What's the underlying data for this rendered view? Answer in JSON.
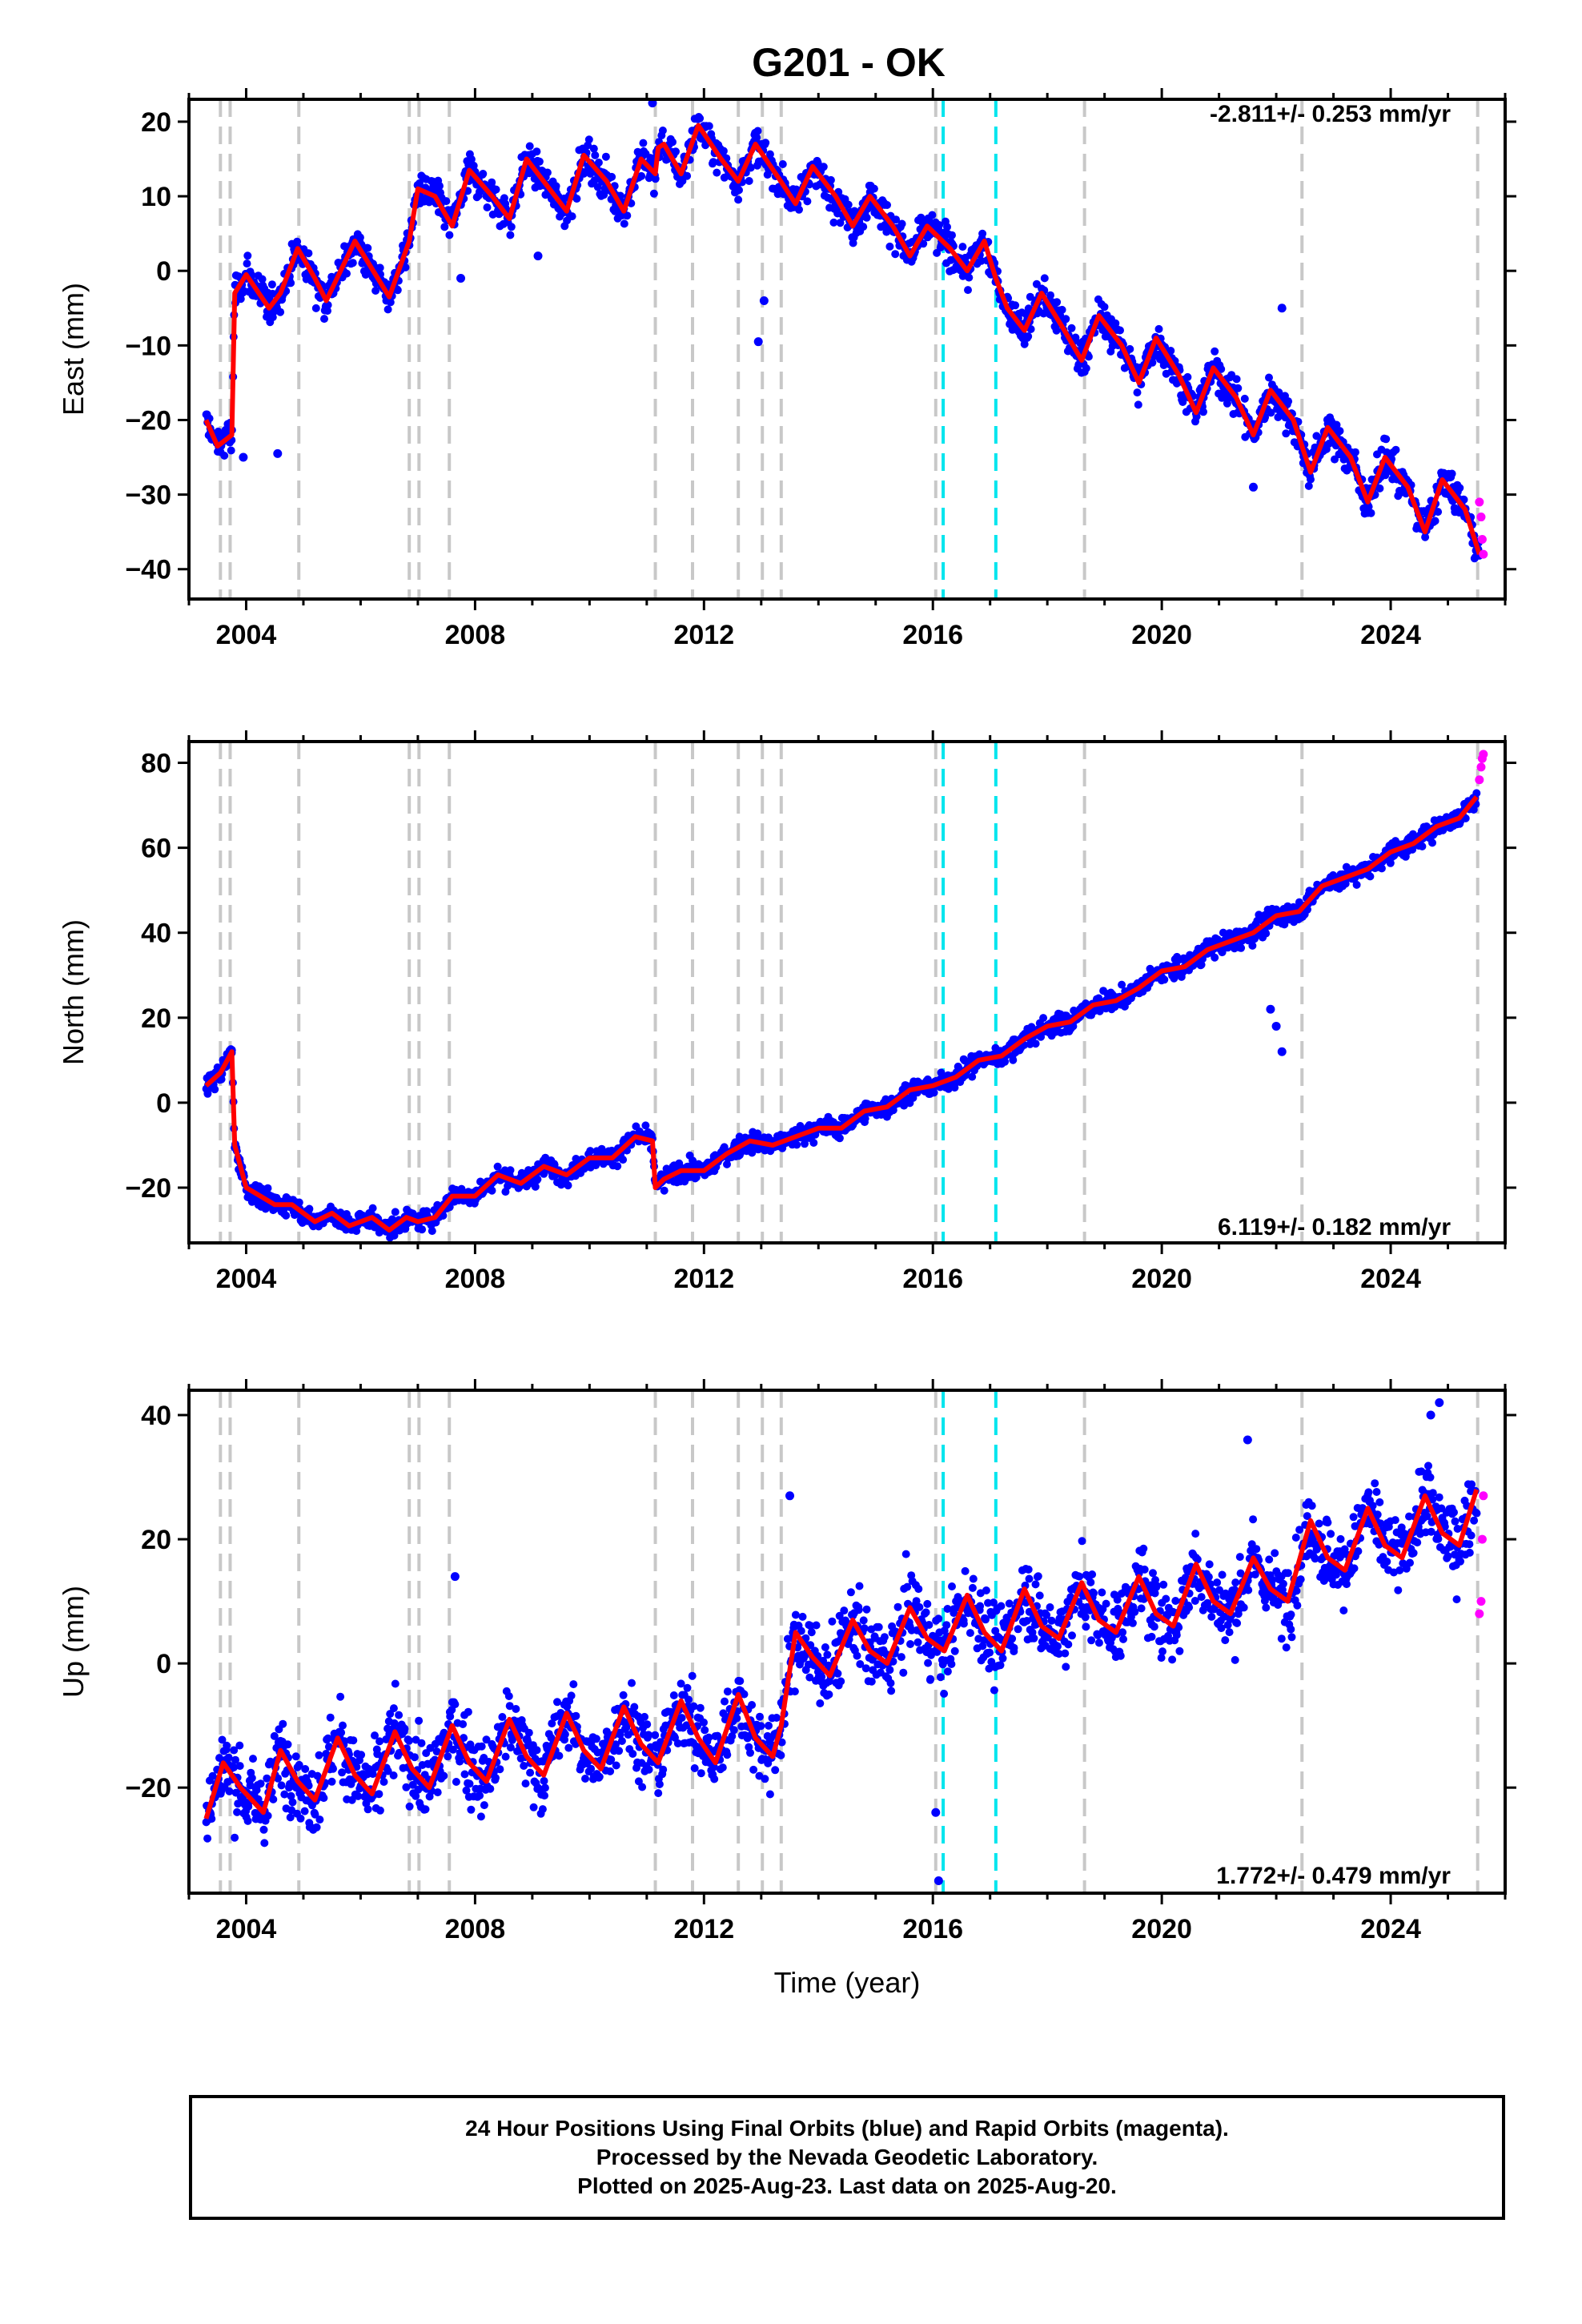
{
  "title": "G201 - OK",
  "colors": {
    "final_orbits": "#0000ff",
    "rapid_orbits": "#ff00ff",
    "model_fit": "#ff0000",
    "equipment_change": "#c8c8c8",
    "earthquake": "#00e5ee"
  },
  "x_axis": {
    "label": "Time (year)",
    "range": [
      2003.0,
      2026.0
    ],
    "ticks": [
      2004,
      2008,
      2012,
      2016,
      2020,
      2024
    ],
    "tick_labels": [
      "2004",
      "2008",
      "2012",
      "2016",
      "2020",
      "2024"
    ]
  },
  "event_lines": {
    "gray": [
      2003.55,
      2003.72,
      2004.92,
      2006.85,
      2007.02,
      2007.55,
      2011.15,
      2011.8,
      2012.6,
      2013.02,
      2013.35,
      2016.05,
      2018.65,
      2022.45,
      2025.52
    ],
    "cyan": [
      2016.18,
      2017.1
    ]
  },
  "chart_data": [
    {
      "type": "scatter",
      "panel": "east",
      "ylabel": "East (mm)",
      "ylim": [
        -44,
        23
      ],
      "yticks": [
        -40,
        -30,
        -20,
        -10,
        0,
        10,
        20
      ],
      "ytick_labels": [
        "−40",
        "−30",
        "−20",
        "−10",
        "0",
        "10",
        "20"
      ],
      "rate_text": "-2.811+/- 0.253 mm/yr",
      "rate_position": "top-right",
      "model_fit": {
        "x": [
          2003.3,
          2003.5,
          2003.75,
          2003.8,
          2004.0,
          2004.4,
          2004.6,
          2004.9,
          2005.2,
          2005.4,
          2005.9,
          2006.3,
          2006.5,
          2006.85,
          2007.0,
          2007.3,
          2007.6,
          2007.9,
          2008.3,
          2008.6,
          2008.9,
          2009.3,
          2009.6,
          2009.9,
          2010.3,
          2010.6,
          2010.9,
          2011.15,
          2011.2,
          2011.3,
          2011.6,
          2011.9,
          2012.3,
          2012.6,
          2012.9,
          2013.3,
          2013.6,
          2013.9,
          2014.3,
          2014.6,
          2014.9,
          2015.3,
          2015.6,
          2015.9,
          2016.3,
          2016.6,
          2016.9,
          2017.1,
          2017.3,
          2017.6,
          2017.9,
          2018.3,
          2018.6,
          2018.9,
          2019.3,
          2019.6,
          2019.9,
          2020.3,
          2020.6,
          2020.9,
          2021.3,
          2021.6,
          2021.9,
          2022.3,
          2022.6,
          2022.9,
          2023.3,
          2023.6,
          2023.9,
          2024.3,
          2024.6,
          2024.9,
          2025.3,
          2025.55
        ],
        "y": [
          -20,
          -23.5,
          -22,
          -3,
          -0.5,
          -5,
          -3,
          3,
          -1,
          -4,
          4,
          -1,
          -3.5,
          4,
          11,
          10,
          6,
          13.5,
          10,
          7,
          15,
          11,
          8,
          15.5,
          12,
          8,
          15,
          13,
          16.5,
          17,
          13,
          19.5,
          15,
          12,
          17,
          12.5,
          9,
          14,
          10,
          6,
          10,
          6,
          2,
          6,
          3,
          0,
          4,
          -1,
          -5,
          -8,
          -3,
          -8,
          -12,
          -6,
          -10,
          -15,
          -9,
          -14,
          -19,
          -13,
          -17,
          -22,
          -16,
          -20,
          -27,
          -21,
          -25,
          -31,
          -25,
          -29,
          -35,
          -28,
          -32,
          -38
        ]
      },
      "rapid_points": {
        "x": [
          2025.55,
          2025.58,
          2025.6,
          2025.62
        ],
        "y": [
          -31,
          -33,
          -36,
          -38
        ]
      },
      "outliers": {
        "x": [
          2003.95,
          2004.55,
          2007.75,
          2009.1,
          2011.1,
          2012.95,
          2013.05,
          2021.6,
          2022.1
        ],
        "y": [
          -25,
          -24.5,
          -1,
          2,
          22.5,
          -9.5,
          -4,
          -29,
          -5
        ]
      }
    },
    {
      "type": "scatter",
      "panel": "north",
      "ylabel": "North (mm)",
      "ylim": [
        -33,
        85
      ],
      "yticks": [
        -20,
        0,
        20,
        40,
        60,
        80
      ],
      "ytick_labels": [
        "−20",
        "0",
        "20",
        "40",
        "60",
        "80"
      ],
      "rate_text": "6.119+/- 0.182 mm/yr",
      "rate_position": "bottom-right",
      "model_fit": {
        "x": [
          2003.3,
          2003.55,
          2003.75,
          2003.8,
          2004.0,
          2004.5,
          2004.8,
          2005.2,
          2005.5,
          2005.8,
          2006.2,
          2006.5,
          2006.8,
          2007.0,
          2007.3,
          2007.6,
          2008.0,
          2008.4,
          2008.8,
          2009.2,
          2009.6,
          2010.0,
          2010.4,
          2010.8,
          2011.1,
          2011.15,
          2011.3,
          2011.6,
          2012.0,
          2012.4,
          2012.8,
          2013.2,
          2013.6,
          2014.0,
          2014.4,
          2014.8,
          2015.2,
          2015.6,
          2016.0,
          2016.4,
          2016.8,
          2017.2,
          2017.6,
          2018.0,
          2018.4,
          2018.8,
          2019.2,
          2019.6,
          2020.0,
          2020.4,
          2020.8,
          2021.2,
          2021.6,
          2022.0,
          2022.4,
          2022.8,
          2023.2,
          2023.6,
          2024.0,
          2024.4,
          2024.8,
          2025.2,
          2025.5
        ],
        "y": [
          4,
          7,
          12,
          -10,
          -20,
          -24,
          -24,
          -28,
          -26,
          -29,
          -27,
          -30,
          -27,
          -28,
          -27,
          -22,
          -22,
          -17,
          -19,
          -15,
          -17,
          -13,
          -13,
          -8,
          -9,
          -20,
          -18,
          -16,
          -16,
          -12,
          -9,
          -10,
          -8,
          -6,
          -6,
          -2,
          -1,
          3,
          4,
          6,
          10,
          11,
          15,
          18,
          19,
          23,
          24,
          27,
          31,
          32,
          36,
          38,
          40,
          44,
          45,
          51,
          53,
          55,
          59,
          61,
          65,
          67,
          72
        ]
      },
      "rapid_points": {
        "x": [
          2025.55,
          2025.58,
          2025.6,
          2025.62
        ],
        "y": [
          76,
          79,
          81,
          82
        ]
      },
      "outliers": {
        "x": [
          2014.7,
          2021.9,
          2022.0,
          2022.1
        ],
        "y": [
          -2,
          22,
          18,
          12
        ]
      }
    },
    {
      "type": "scatter",
      "panel": "up",
      "ylabel": "Up (mm)",
      "ylim": [
        -37,
        44
      ],
      "yticks": [
        -20,
        0,
        20,
        40
      ],
      "ytick_labels": [
        "−20",
        "0",
        "20",
        "40"
      ],
      "rate_text": "1.772+/- 0.479 mm/yr",
      "rate_position": "bottom-right",
      "model_fit": {
        "x": [
          2003.3,
          2003.6,
          2003.9,
          2004.3,
          2004.6,
          2004.9,
          2005.2,
          2005.6,
          2005.9,
          2006.2,
          2006.6,
          2006.9,
          2007.2,
          2007.6,
          2007.9,
          2008.2,
          2008.6,
          2008.9,
          2009.2,
          2009.6,
          2009.9,
          2010.2,
          2010.6,
          2010.9,
          2011.2,
          2011.6,
          2011.9,
          2012.2,
          2012.6,
          2012.9,
          2013.2,
          2013.35,
          2013.6,
          2013.9,
          2014.2,
          2014.6,
          2014.9,
          2015.2,
          2015.6,
          2015.9,
          2016.2,
          2016.6,
          2016.9,
          2017.2,
          2017.6,
          2017.9,
          2018.2,
          2018.6,
          2018.9,
          2019.2,
          2019.6,
          2019.9,
          2020.2,
          2020.6,
          2020.9,
          2021.2,
          2021.6,
          2021.9,
          2022.2,
          2022.6,
          2022.9,
          2023.2,
          2023.6,
          2023.9,
          2024.2,
          2024.6,
          2024.9,
          2025.2,
          2025.5
        ],
        "y": [
          -25,
          -16,
          -20,
          -24,
          -14,
          -19,
          -22,
          -12,
          -18,
          -21,
          -11,
          -17,
          -20,
          -10,
          -16,
          -19,
          -9,
          -15,
          -18,
          -8,
          -14,
          -17,
          -7,
          -13,
          -16,
          -6,
          -12,
          -16,
          -5,
          -12,
          -15,
          -10,
          5,
          1,
          -2,
          7,
          2,
          0,
          9,
          4,
          2,
          11,
          5,
          2,
          12,
          6,
          4,
          13,
          7,
          5,
          14,
          8,
          6,
          16,
          10,
          8,
          17,
          12,
          10,
          23,
          17,
          15,
          25,
          19,
          17,
          27,
          21,
          19,
          28
        ]
      },
      "rapid_points": {
        "x": [
          2025.55,
          2025.58,
          2025.6,
          2025.62
        ],
        "y": [
          8,
          10,
          20,
          27
        ]
      },
      "outliers": {
        "x": [
          2007.65,
          2013.5,
          2016.05,
          2016.1,
          2021.5,
          2024.7,
          2024.85
        ],
        "y": [
          14,
          27,
          -24,
          -35,
          36,
          40,
          42
        ]
      }
    }
  ],
  "footer": {
    "line1": "24 Hour Positions Using Final Orbits (blue) and Rapid Orbits (magenta).",
    "line2": "Processed by the Nevada Geodetic Laboratory.",
    "line3": "Plotted on 2025-Aug-23. Last data on 2025-Aug-20."
  }
}
